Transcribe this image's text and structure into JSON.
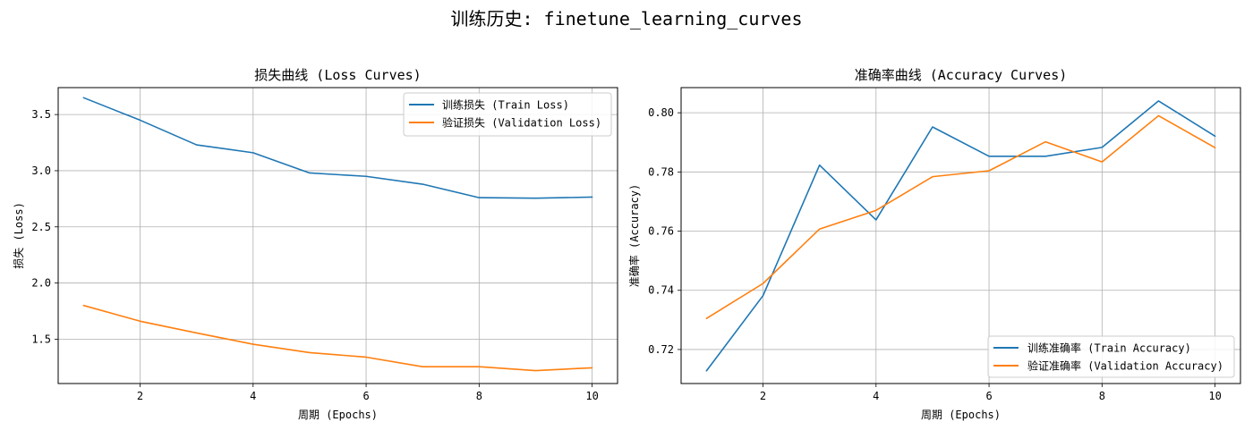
{
  "suptitle": "训练历史: finetune_learning_curves",
  "chart_data": [
    {
      "type": "line",
      "title": "损失曲线 (Loss Curves)",
      "xlabel": "周期 (Epochs)",
      "ylabel": "损失 (Loss)",
      "xlim": [
        0.55,
        10.45
      ],
      "ylim": [
        1.105,
        3.74
      ],
      "xticks": [
        2,
        4,
        6,
        8,
        10
      ],
      "yticks": [
        1.5,
        2.0,
        2.5,
        3.0,
        3.5
      ],
      "ytick_labels": [
        "1.5",
        "2.0",
        "2.5",
        "3.0",
        "3.5"
      ],
      "grid": true,
      "legend_position": "upper right",
      "x": [
        1,
        2,
        3,
        4,
        5,
        6,
        7,
        8,
        9,
        10
      ],
      "series": [
        {
          "name": "训练损失 (Train Loss)",
          "color": "#1f77b4",
          "values": [
            3.65,
            3.45,
            3.23,
            3.16,
            2.98,
            2.95,
            2.88,
            2.76,
            2.755,
            2.765
          ]
        },
        {
          "name": "验证损失 (Validation Loss)",
          "color": "#ff7f0e",
          "values": [
            1.8,
            1.66,
            1.555,
            1.455,
            1.38,
            1.34,
            1.255,
            1.255,
            1.22,
            1.245
          ]
        }
      ]
    },
    {
      "type": "line",
      "title": "准确率曲线 (Accuracy Curves)",
      "xlabel": "周期 (Epochs)",
      "ylabel": "准确率 (Accuracy)",
      "xlim": [
        0.55,
        10.45
      ],
      "ylim": [
        0.7085,
        0.8085
      ],
      "xticks": [
        2,
        4,
        6,
        8,
        10
      ],
      "yticks": [
        0.72,
        0.74,
        0.76,
        0.78,
        0.8
      ],
      "ytick_labels": [
        "0.72",
        "0.74",
        "0.76",
        "0.78",
        "0.80"
      ],
      "grid": true,
      "legend_position": "lower right",
      "x": [
        1,
        2,
        3,
        4,
        5,
        6,
        7,
        8,
        9,
        10
      ],
      "series": [
        {
          "name": "训练准确率 (Train Accuracy)",
          "color": "#1f77b4",
          "values": [
            0.7128,
            0.7382,
            0.7823,
            0.7638,
            0.7952,
            0.7853,
            0.7853,
            0.7883,
            0.804,
            0.7921
          ]
        },
        {
          "name": "验证准确率 (Validation Accuracy)",
          "color": "#ff7f0e",
          "values": [
            0.7305,
            0.7423,
            0.7607,
            0.767,
            0.7784,
            0.7804,
            0.7902,
            0.7834,
            0.799,
            0.7882
          ]
        }
      ]
    }
  ]
}
